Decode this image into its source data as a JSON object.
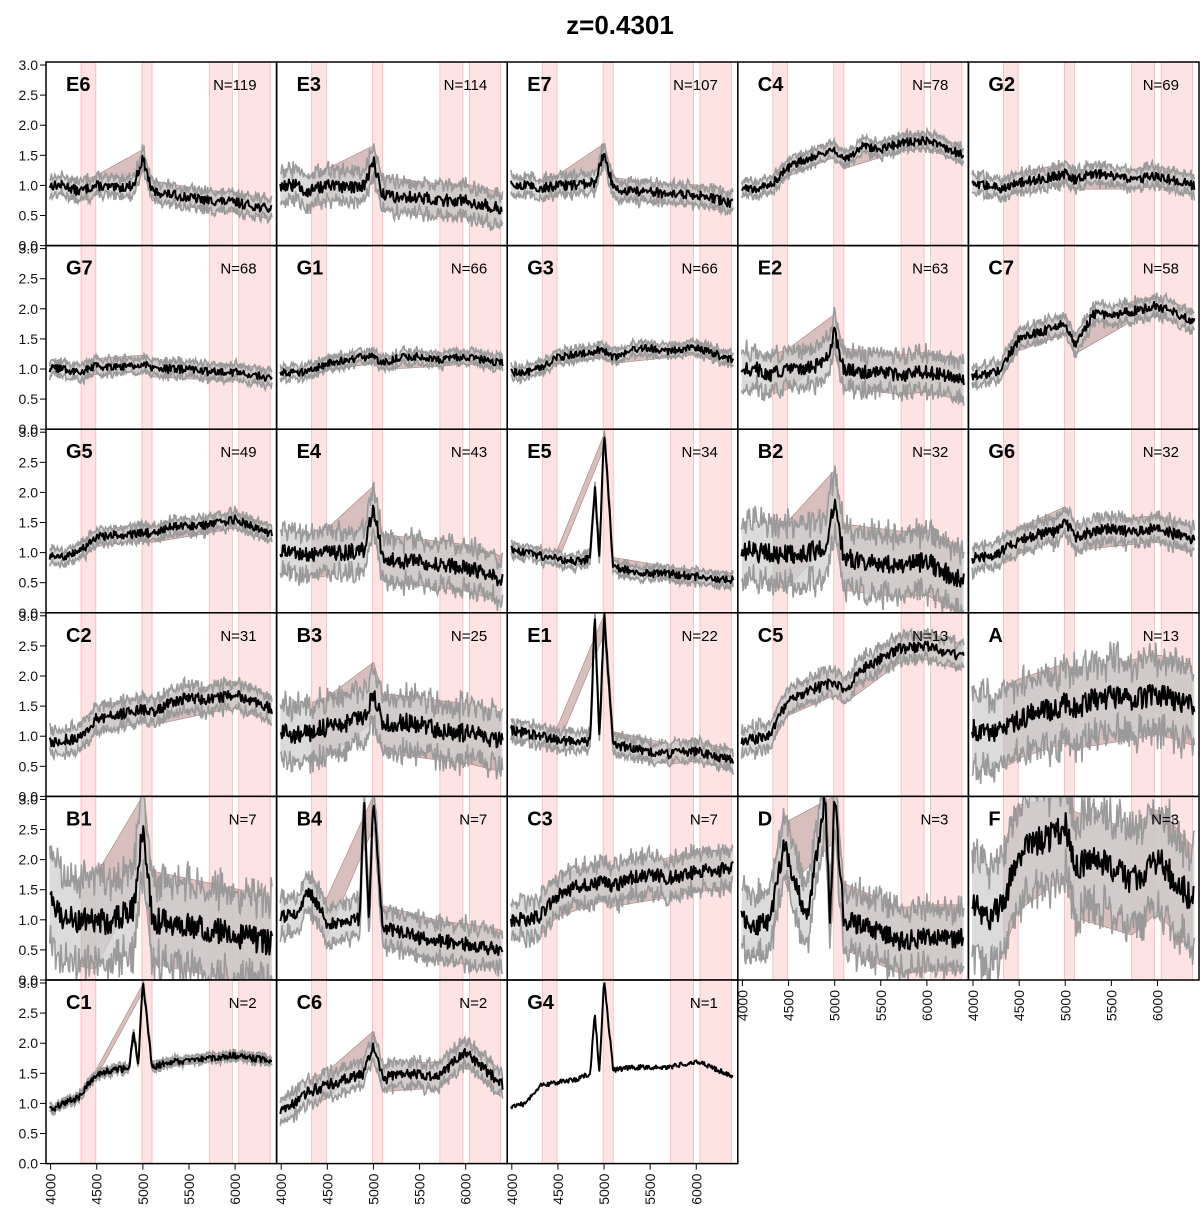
{
  "chart_data": {
    "type": "line",
    "title": "z=0.4301",
    "xlabel": "",
    "ylabel": "",
    "xlim": [
      3950,
      6450
    ],
    "ylim": [
      0.0,
      3.05
    ],
    "x_ticks": [
      "4000",
      "4500",
      "5000",
      "5500",
      "6000"
    ],
    "y_ticks": [
      "0.0",
      "0.5",
      "1.0",
      "1.5",
      "2.0",
      "2.5",
      "3.0"
    ],
    "masked_regions": [
      [
        4330,
        4490
      ],
      [
        4990,
        5100
      ],
      [
        5720,
        5970
      ],
      [
        6040,
        6380
      ]
    ],
    "panels": [
      {
        "name": "E6",
        "count": "N=119",
        "row": 0,
        "col": 0,
        "x": [
          4000,
          4150,
          4300,
          4500,
          4700,
          4900,
          5000,
          5100,
          5300,
          5500,
          5700,
          6000,
          6400
        ],
        "y": [
          1.0,
          1.0,
          0.9,
          1.0,
          0.95,
          1.0,
          1.45,
          0.9,
          0.85,
          0.8,
          0.75,
          0.72,
          0.6
        ],
        "spread": 0.15
      },
      {
        "name": "E3",
        "count": "N=114",
        "row": 0,
        "col": 1,
        "x": [
          4000,
          4150,
          4300,
          4500,
          4700,
          4900,
          5000,
          5100,
          5300,
          5500,
          5700,
          6000,
          6400
        ],
        "y": [
          1.0,
          1.0,
          0.9,
          1.0,
          0.95,
          1.0,
          1.4,
          0.85,
          0.8,
          0.8,
          0.75,
          0.75,
          0.6
        ],
        "spread": 0.25
      },
      {
        "name": "E7",
        "count": "N=107",
        "row": 0,
        "col": 2,
        "x": [
          4000,
          4150,
          4300,
          4500,
          4700,
          4900,
          5000,
          5100,
          5300,
          5500,
          5700,
          6000,
          6400
        ],
        "y": [
          1.0,
          1.0,
          0.95,
          1.0,
          1.0,
          1.05,
          1.55,
          0.95,
          0.9,
          0.9,
          0.85,
          0.85,
          0.7
        ],
        "spread": 0.15
      },
      {
        "name": "C4",
        "count": "N=78",
        "row": 0,
        "col": 3,
        "x": [
          4000,
          4150,
          4300,
          4500,
          4700,
          4900,
          5000,
          5100,
          5300,
          5500,
          5700,
          6000,
          6400
        ],
        "y": [
          0.95,
          0.95,
          1.0,
          1.3,
          1.45,
          1.55,
          1.6,
          1.4,
          1.65,
          1.6,
          1.7,
          1.75,
          1.5
        ],
        "spread": 0.12
      },
      {
        "name": "G2",
        "count": "N=69",
        "row": 0,
        "col": 4,
        "x": [
          4000,
          4150,
          4300,
          4500,
          4700,
          4900,
          5000,
          5100,
          5300,
          5500,
          5700,
          6000,
          6400
        ],
        "y": [
          1.0,
          1.0,
          0.95,
          1.05,
          1.1,
          1.15,
          1.2,
          1.1,
          1.2,
          1.15,
          1.1,
          1.15,
          1.0
        ],
        "spread": 0.15
      },
      {
        "name": "G7",
        "count": "N=68",
        "row": 1,
        "col": 0,
        "x": [
          4000,
          4150,
          4300,
          4500,
          4700,
          4900,
          5000,
          5100,
          5300,
          5500,
          5700,
          6000,
          6400
        ],
        "y": [
          1.0,
          1.0,
          0.95,
          1.05,
          1.05,
          1.05,
          1.1,
          1.0,
          1.0,
          1.0,
          0.95,
          0.95,
          0.85
        ],
        "spread": 0.12
      },
      {
        "name": "G1",
        "count": "N=66",
        "row": 1,
        "col": 1,
        "x": [
          4000,
          4150,
          4300,
          4500,
          4700,
          4900,
          5000,
          5100,
          5300,
          5500,
          5700,
          6000,
          6400
        ],
        "y": [
          0.95,
          0.95,
          0.95,
          1.1,
          1.15,
          1.2,
          1.2,
          1.1,
          1.2,
          1.2,
          1.15,
          1.2,
          1.1
        ],
        "spread": 0.1
      },
      {
        "name": "G3",
        "count": "N=66",
        "row": 1,
        "col": 2,
        "x": [
          4000,
          4150,
          4300,
          4500,
          4700,
          4900,
          5000,
          5100,
          5300,
          5500,
          5700,
          6000,
          6400
        ],
        "y": [
          0.95,
          0.95,
          1.0,
          1.2,
          1.25,
          1.3,
          1.3,
          1.2,
          1.3,
          1.35,
          1.3,
          1.35,
          1.15
        ],
        "spread": 0.1
      },
      {
        "name": "E2",
        "count": "N=63",
        "row": 1,
        "col": 3,
        "x": [
          4000,
          4150,
          4300,
          4500,
          4700,
          4900,
          5000,
          5100,
          5300,
          5500,
          5700,
          6000,
          6400
        ],
        "y": [
          1.0,
          1.0,
          0.9,
          1.0,
          1.0,
          1.1,
          1.6,
          1.0,
          0.95,
          0.95,
          0.9,
          0.95,
          0.8
        ],
        "spread": 0.3
      },
      {
        "name": "C7",
        "count": "N=58",
        "row": 1,
        "col": 4,
        "x": [
          4000,
          4150,
          4300,
          4500,
          4700,
          4900,
          5000,
          5100,
          5300,
          5500,
          5700,
          6000,
          6400
        ],
        "y": [
          0.9,
          0.9,
          1.0,
          1.5,
          1.6,
          1.7,
          1.75,
          1.4,
          1.9,
          1.9,
          1.95,
          2.05,
          1.8
        ],
        "spread": 0.15
      },
      {
        "name": "G5",
        "count": "N=49",
        "row": 2,
        "col": 0,
        "x": [
          4000,
          4150,
          4300,
          4500,
          4700,
          4900,
          5000,
          5100,
          5300,
          5500,
          5700,
          6000,
          6400
        ],
        "y": [
          0.95,
          0.95,
          1.0,
          1.25,
          1.3,
          1.3,
          1.35,
          1.3,
          1.45,
          1.45,
          1.45,
          1.55,
          1.3
        ],
        "spread": 0.12
      },
      {
        "name": "E4",
        "count": "N=43",
        "row": 2,
        "col": 1,
        "x": [
          4000,
          4150,
          4300,
          4500,
          4700,
          4900,
          5000,
          5100,
          5300,
          5500,
          5700,
          6000,
          6400
        ],
        "y": [
          1.0,
          1.0,
          0.95,
          1.0,
          1.0,
          1.05,
          1.75,
          0.9,
          0.85,
          0.85,
          0.8,
          0.75,
          0.55
        ],
        "spread": 0.35
      },
      {
        "name": "E5",
        "count": "N=34",
        "row": 2,
        "col": 2,
        "x": [
          4000,
          4150,
          4300,
          4500,
          4700,
          4850,
          4900,
          4950,
          5000,
          5100,
          5300,
          5500,
          5700,
          6000,
          6400
        ],
        "y": [
          1.05,
          1.0,
          0.95,
          0.9,
          0.85,
          0.9,
          2.1,
          0.9,
          3.05,
          0.75,
          0.7,
          0.65,
          0.65,
          0.6,
          0.55
        ],
        "spread": 0.1
      },
      {
        "name": "B2",
        "count": "N=32",
        "row": 2,
        "col": 3,
        "x": [
          4000,
          4150,
          4300,
          4500,
          4700,
          4900,
          5000,
          5100,
          5300,
          5500,
          5700,
          6000,
          6400
        ],
        "y": [
          1.05,
          1.0,
          1.0,
          0.95,
          1.0,
          1.1,
          1.85,
          0.9,
          0.85,
          0.85,
          0.8,
          0.85,
          0.5
        ],
        "spread": 0.5
      },
      {
        "name": "G6",
        "count": "N=32",
        "row": 2,
        "col": 4,
        "x": [
          4000,
          4150,
          4300,
          4500,
          4700,
          4900,
          5000,
          5100,
          5300,
          5500,
          5700,
          6000,
          6400
        ],
        "y": [
          0.9,
          0.95,
          1.0,
          1.2,
          1.3,
          1.35,
          1.55,
          1.25,
          1.35,
          1.4,
          1.35,
          1.4,
          1.2
        ],
        "spread": 0.2
      },
      {
        "name": "C2",
        "count": "N=31",
        "row": 3,
        "col": 0,
        "x": [
          4000,
          4150,
          4300,
          4500,
          4700,
          4900,
          5000,
          5100,
          5300,
          5500,
          5700,
          6000,
          6400
        ],
        "y": [
          0.9,
          0.95,
          0.95,
          1.3,
          1.35,
          1.4,
          1.45,
          1.4,
          1.55,
          1.65,
          1.6,
          1.7,
          1.45
        ],
        "spread": 0.2
      },
      {
        "name": "B3",
        "count": "N=25",
        "row": 3,
        "col": 1,
        "x": [
          4000,
          4150,
          4300,
          4500,
          4700,
          4900,
          5000,
          5100,
          5300,
          5500,
          5700,
          6000,
          6400
        ],
        "y": [
          1.1,
          1.0,
          1.05,
          1.15,
          1.2,
          1.3,
          1.75,
          1.2,
          1.25,
          1.2,
          1.1,
          1.05,
          0.9
        ],
        "spread": 0.45
      },
      {
        "name": "E1",
        "count": "N=22",
        "row": 3,
        "col": 2,
        "x": [
          4000,
          4150,
          4300,
          4500,
          4700,
          4850,
          4900,
          4950,
          5000,
          5100,
          5300,
          5500,
          5700,
          6000,
          6400
        ],
        "y": [
          1.1,
          1.05,
          1.0,
          0.95,
          0.9,
          0.9,
          3.05,
          0.9,
          3.05,
          0.85,
          0.8,
          0.75,
          0.7,
          0.75,
          0.6
        ],
        "spread": 0.15
      },
      {
        "name": "C5",
        "count": "N=13",
        "row": 3,
        "col": 3,
        "x": [
          4000,
          4150,
          4300,
          4500,
          4700,
          4900,
          5000,
          5100,
          5300,
          5500,
          5700,
          6000,
          6400
        ],
        "y": [
          0.95,
          0.95,
          1.05,
          1.6,
          1.75,
          1.85,
          1.9,
          1.75,
          2.1,
          2.3,
          2.45,
          2.5,
          2.3
        ],
        "spread": 0.2
      },
      {
        "name": "A",
        "count": "N=13",
        "row": 3,
        "col": 4,
        "x": [
          4000,
          4150,
          4300,
          4500,
          4700,
          4900,
          5000,
          5100,
          5300,
          5500,
          5700,
          6000,
          6400
        ],
        "y": [
          1.1,
          1.05,
          1.1,
          1.3,
          1.4,
          1.45,
          1.55,
          1.45,
          1.6,
          1.65,
          1.6,
          1.7,
          1.5
        ],
        "spread": 0.6
      },
      {
        "name": "B1",
        "count": "N=7",
        "row": 4,
        "col": 0,
        "x": [
          4000,
          4150,
          4300,
          4500,
          4700,
          4900,
          5000,
          5100,
          5300,
          5500,
          5700,
          6000,
          6400
        ],
        "y": [
          1.3,
          1.0,
          1.0,
          0.95,
          1.0,
          1.2,
          2.55,
          1.0,
          0.95,
          0.9,
          0.85,
          0.75,
          0.6
        ],
        "spread": 0.7
      },
      {
        "name": "B4",
        "count": "N=7",
        "row": 4,
        "col": 1,
        "x": [
          4000,
          4150,
          4300,
          4500,
          4700,
          4850,
          4900,
          4950,
          5000,
          5100,
          5300,
          5500,
          5700,
          6000,
          6400
        ],
        "y": [
          1.05,
          1.05,
          1.5,
          0.95,
          0.95,
          1.0,
          3.05,
          1.0,
          3.05,
          0.85,
          0.8,
          0.7,
          0.65,
          0.6,
          0.5
        ],
        "spread": 0.3
      },
      {
        "name": "C3",
        "count": "N=7",
        "row": 4,
        "col": 2,
        "x": [
          4000,
          4150,
          4300,
          4500,
          4700,
          4900,
          5000,
          5100,
          5300,
          5500,
          5700,
          6000,
          6400
        ],
        "y": [
          1.0,
          1.0,
          1.05,
          1.4,
          1.55,
          1.6,
          1.65,
          1.55,
          1.7,
          1.75,
          1.7,
          1.8,
          1.85
        ],
        "spread": 0.3
      },
      {
        "name": "D",
        "count": "N=3",
        "row": 4,
        "col": 3,
        "x": [
          4000,
          4150,
          4300,
          4450,
          4700,
          4900,
          4950,
          5000,
          5100,
          5300,
          5500,
          5700,
          6000,
          6400
        ],
        "y": [
          1.0,
          0.9,
          1.0,
          2.25,
          1.0,
          3.05,
          1.0,
          3.05,
          1.0,
          0.9,
          0.8,
          0.65,
          0.7,
          0.7
        ],
        "spread": 0.5
      },
      {
        "name": "F",
        "count": "N=3",
        "row": 4,
        "col": 4,
        "x": [
          4000,
          4150,
          4300,
          4500,
          4700,
          4900,
          5000,
          5100,
          5300,
          5500,
          5700,
          6000,
          6400
        ],
        "y": [
          1.3,
          1.0,
          1.2,
          2.1,
          2.3,
          2.4,
          2.6,
          1.9,
          2.0,
          1.9,
          1.6,
          2.0,
          1.3
        ],
        "spread": 0.8
      },
      {
        "name": "C1",
        "count": "N=2",
        "row": 5,
        "col": 0,
        "x": [
          4000,
          4150,
          4300,
          4400,
          4500,
          4700,
          4850,
          4900,
          4950,
          5000,
          5100,
          5300,
          5500,
          5700,
          6000,
          6400
        ],
        "y": [
          0.9,
          1.0,
          1.1,
          1.3,
          1.5,
          1.55,
          1.6,
          2.2,
          1.6,
          3.05,
          1.6,
          1.7,
          1.7,
          1.75,
          1.8,
          1.7
        ],
        "spread": 0.06
      },
      {
        "name": "C6",
        "count": "N=2",
        "row": 5,
        "col": 1,
        "x": [
          4000,
          4150,
          4300,
          4500,
          4700,
          4900,
          5000,
          5100,
          5300,
          5500,
          5700,
          6000,
          6400
        ],
        "y": [
          0.9,
          1.0,
          1.2,
          1.3,
          1.4,
          1.5,
          2.0,
          1.4,
          1.5,
          1.5,
          1.45,
          1.85,
          1.3
        ],
        "spread": 0.2
      },
      {
        "name": "G4",
        "count": "N=1",
        "row": 5,
        "col": 2,
        "x": [
          4000,
          4150,
          4300,
          4500,
          4700,
          4850,
          4900,
          4950,
          5000,
          5100,
          5300,
          5500,
          5700,
          6000,
          6400
        ],
        "y": [
          0.95,
          1.0,
          1.3,
          1.35,
          1.4,
          1.5,
          2.5,
          1.5,
          3.05,
          1.55,
          1.6,
          1.6,
          1.6,
          1.7,
          1.45
        ],
        "spread": 0.0
      }
    ]
  },
  "colors": {
    "mask_band": "#fde3e3",
    "mask_edge": "#f5b6b6",
    "spread_fill": "#cfcfcf",
    "spread_edge": "#9a9a9a",
    "error_fill": "#c9a3a3",
    "mean_line": "#000000"
  }
}
